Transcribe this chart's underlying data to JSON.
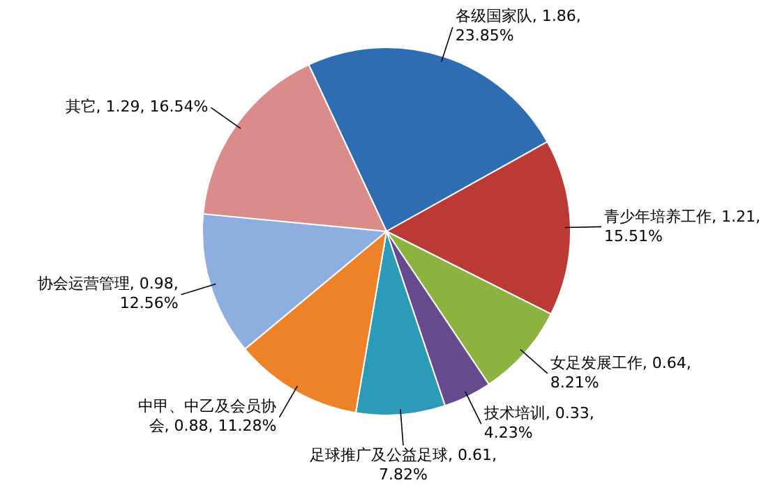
{
  "chart_data": {
    "type": "pie",
    "categories": [
      "各级国家队",
      "青少年培养工作",
      "女足发展工作",
      "技术培训",
      "足球推广及公益足球",
      "中甲、中乙及会员协会",
      "协会运营管理",
      "其它"
    ],
    "values": [
      1.86,
      1.21,
      0.64,
      0.33,
      0.61,
      0.88,
      0.98,
      1.29
    ],
    "value_labels": [
      "1.86, 23.85%",
      "1.21, 15.51%",
      "0.64, 8.21%",
      "0.33, 4.23%",
      "0.61, 7.82%",
      "0.88, 11.28%",
      "0.98, 12.56%",
      "1.29, 16.54%"
    ],
    "colors": [
      "#2f6db3",
      "#bb3a35",
      "#8cb23f",
      "#674a8e",
      "#2d9bb7",
      "#ee8228",
      "#8eaee0",
      "#d98c89"
    ]
  }
}
